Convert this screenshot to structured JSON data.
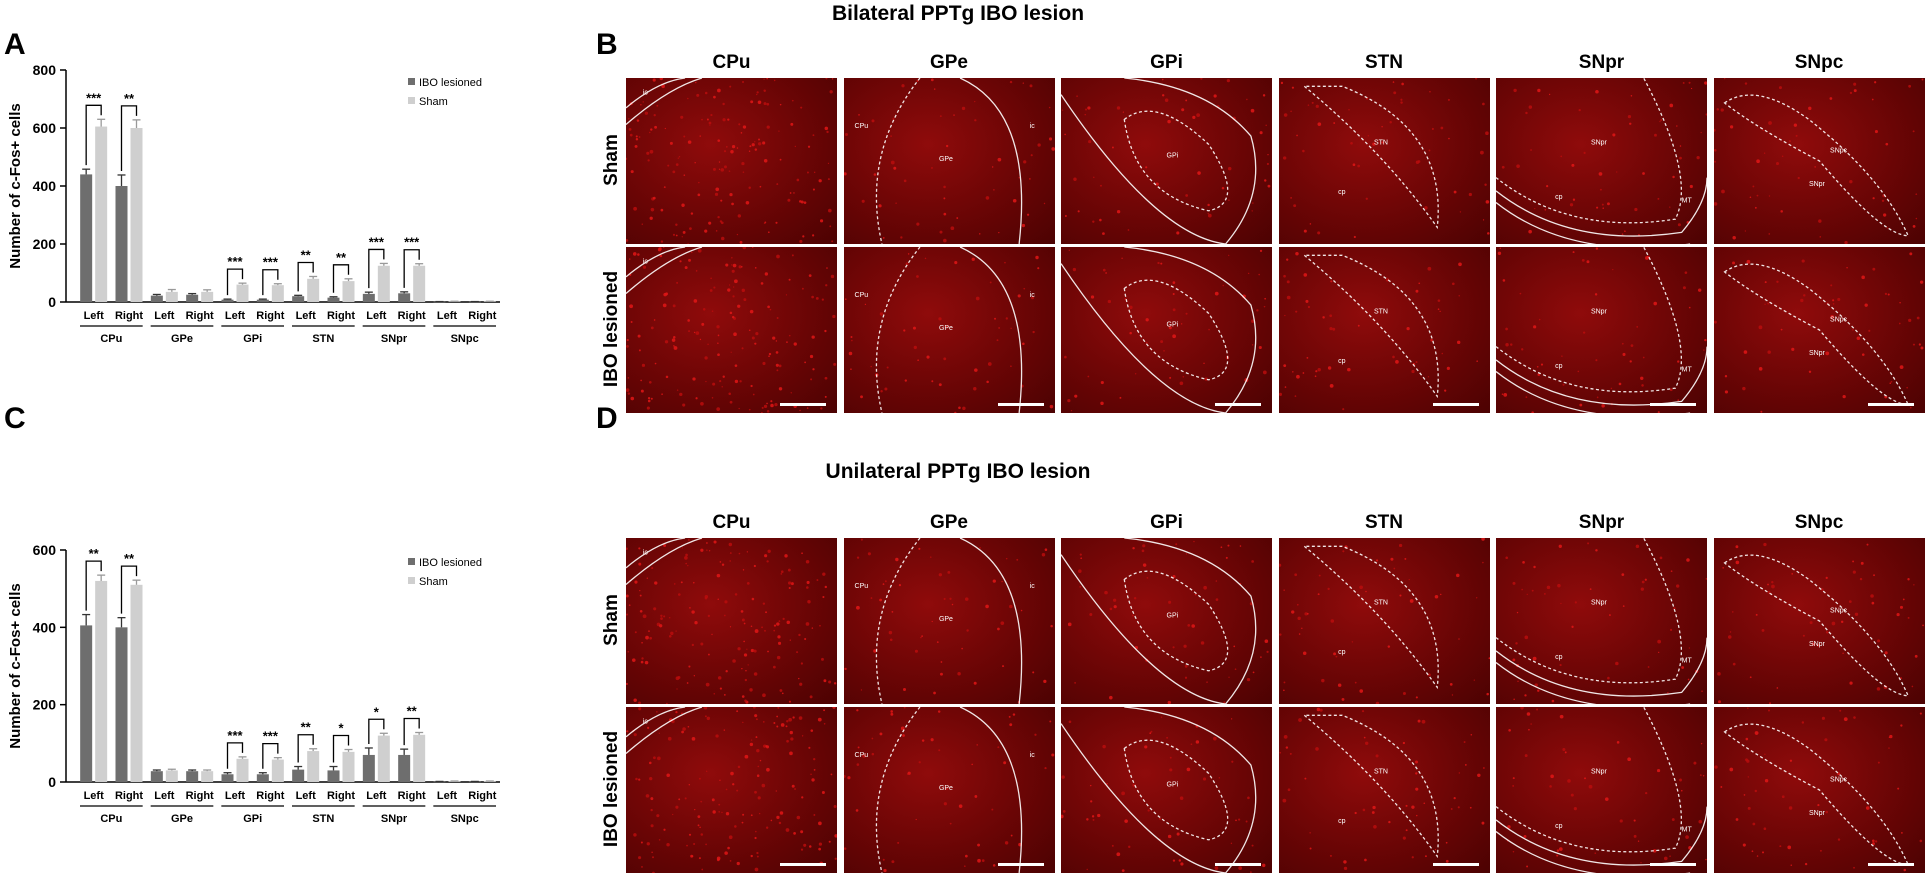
{
  "panel_letters": {
    "A": "A",
    "B": "B",
    "C": "C",
    "D": "D"
  },
  "titles": {
    "bilateral": "Bilateral PPTg IBO lesion",
    "unilateral": "Unilateral PPTg IBO lesion"
  },
  "image_grid": {
    "columns": [
      "CPu",
      "GPe",
      "GPi",
      "STN",
      "SNpr",
      "SNpc"
    ],
    "rows": [
      "Sham",
      "IBO lesioned"
    ],
    "region_labels": {
      "cpu": [
        "ic"
      ],
      "gpe": [
        "CPu",
        "GPe",
        "ic"
      ],
      "gpi": [
        "GPi"
      ],
      "stn": [
        "STN",
        "cp"
      ],
      "snpr": [
        "SNpr",
        "cp",
        "MT"
      ],
      "snpc": [
        "SNpc",
        "SNpr"
      ]
    },
    "colors": {
      "tissue": "#6a0505",
      "outline": "#ffffff"
    }
  },
  "chart_data": [
    {
      "type": "bar",
      "panel": "A",
      "ylabel": "Number of c-Fos+ cells",
      "xlabel": "",
      "ylim": [
        0,
        800
      ],
      "yticks": [
        0,
        200,
        400,
        600,
        800
      ],
      "groups": [
        "CPu",
        "GPe",
        "GPi",
        "STN",
        "SNpr",
        "SNpc"
      ],
      "categories": [
        "Left",
        "Right",
        "Left",
        "Right",
        "Left",
        "Right",
        "Left",
        "Right",
        "Left",
        "Right",
        "Left",
        "Right"
      ],
      "series": [
        {
          "name": "IBO lesioned",
          "color": "#6e6e6e",
          "values": [
            440,
            400,
            22,
            25,
            8,
            8,
            20,
            15,
            28,
            30,
            1,
            1
          ],
          "errors": [
            18,
            38,
            4,
            4,
            2,
            2,
            3,
            3,
            6,
            5,
            0.5,
            0.5
          ]
        },
        {
          "name": "Sham",
          "color": "#cfcfcf",
          "values": [
            605,
            600,
            35,
            35,
            60,
            58,
            80,
            72,
            125,
            125,
            2,
            2
          ],
          "errors": [
            25,
            28,
            8,
            7,
            5,
            5,
            8,
            8,
            8,
            7,
            0.5,
            0.5
          ]
        }
      ],
      "significance": [
        "***",
        "**",
        "",
        "",
        "***",
        "***",
        "**",
        "**",
        "***",
        "***",
        "",
        ""
      ],
      "legend": "top-right",
      "grid": false
    },
    {
      "type": "bar",
      "panel": "C",
      "ylabel": "Number of c-Fos+ cells",
      "xlabel": "",
      "ylim": [
        0,
        600
      ],
      "yticks": [
        0,
        200,
        400,
        600
      ],
      "groups": [
        "CPu",
        "GPe",
        "GPi",
        "STN",
        "SNpr",
        "SNpc"
      ],
      "categories": [
        "Left",
        "Right",
        "Left",
        "Right",
        "Left",
        "Right",
        "Left",
        "Right",
        "Left",
        "Right",
        "Left",
        "Right"
      ],
      "series": [
        {
          "name": "IBO lesioned",
          "color": "#6e6e6e",
          "values": [
            405,
            400,
            28,
            28,
            20,
            20,
            32,
            30,
            70,
            70,
            1,
            1
          ],
          "errors": [
            28,
            25,
            3,
            3,
            4,
            4,
            8,
            10,
            18,
            15,
            0.5,
            0.5
          ]
        },
        {
          "name": "Sham",
          "color": "#cfcfcf",
          "values": [
            520,
            510,
            30,
            28,
            60,
            58,
            80,
            78,
            120,
            122,
            2,
            2
          ],
          "errors": [
            15,
            12,
            3,
            3,
            5,
            5,
            6,
            6,
            6,
            6,
            0.5,
            0.5
          ]
        }
      ],
      "significance": [
        "**",
        "**",
        "",
        "",
        "***",
        "***",
        "**",
        "*",
        "*",
        "**",
        "",
        ""
      ],
      "legend": "top-right",
      "grid": false
    }
  ]
}
